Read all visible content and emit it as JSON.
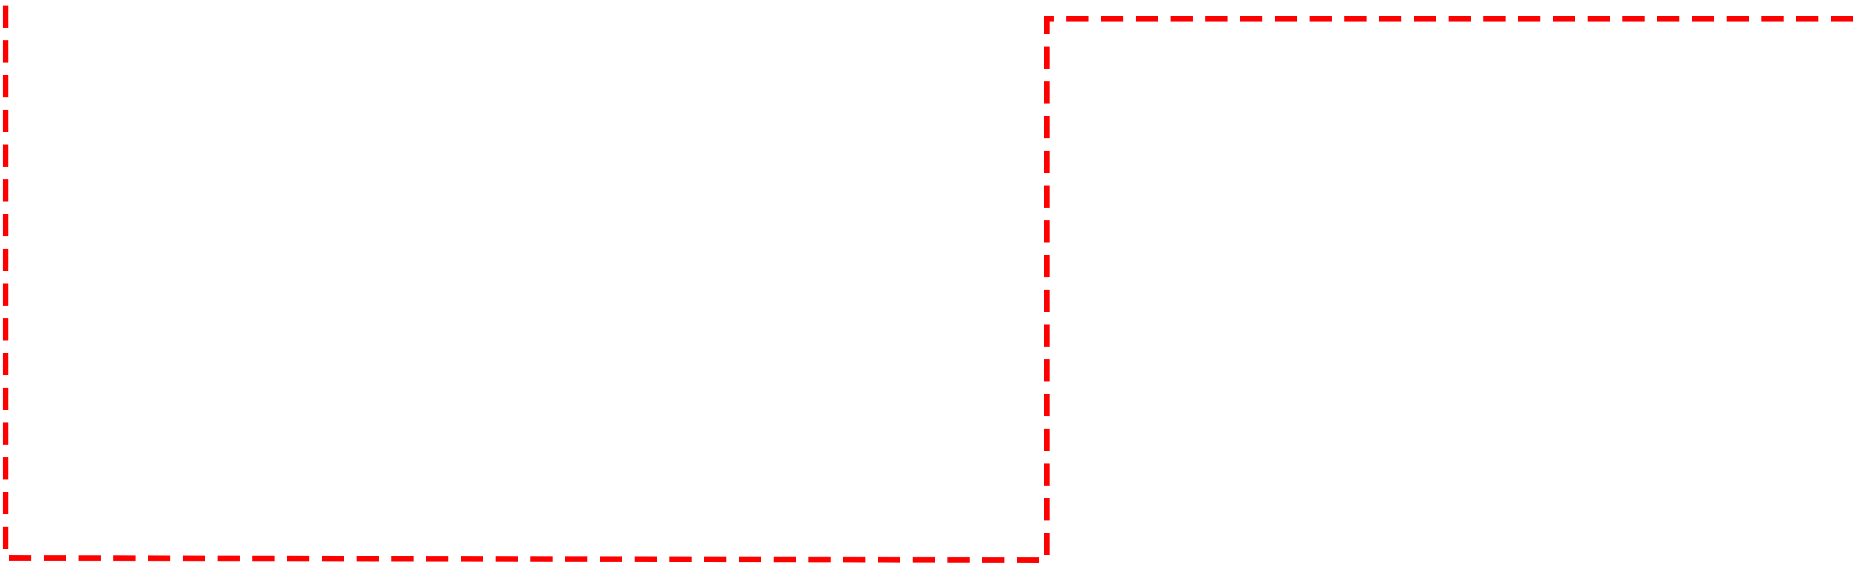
{
  "canvas": {
    "background": "#ffffff",
    "outline_color": "#ff0000",
    "outline_style": "dashed"
  }
}
